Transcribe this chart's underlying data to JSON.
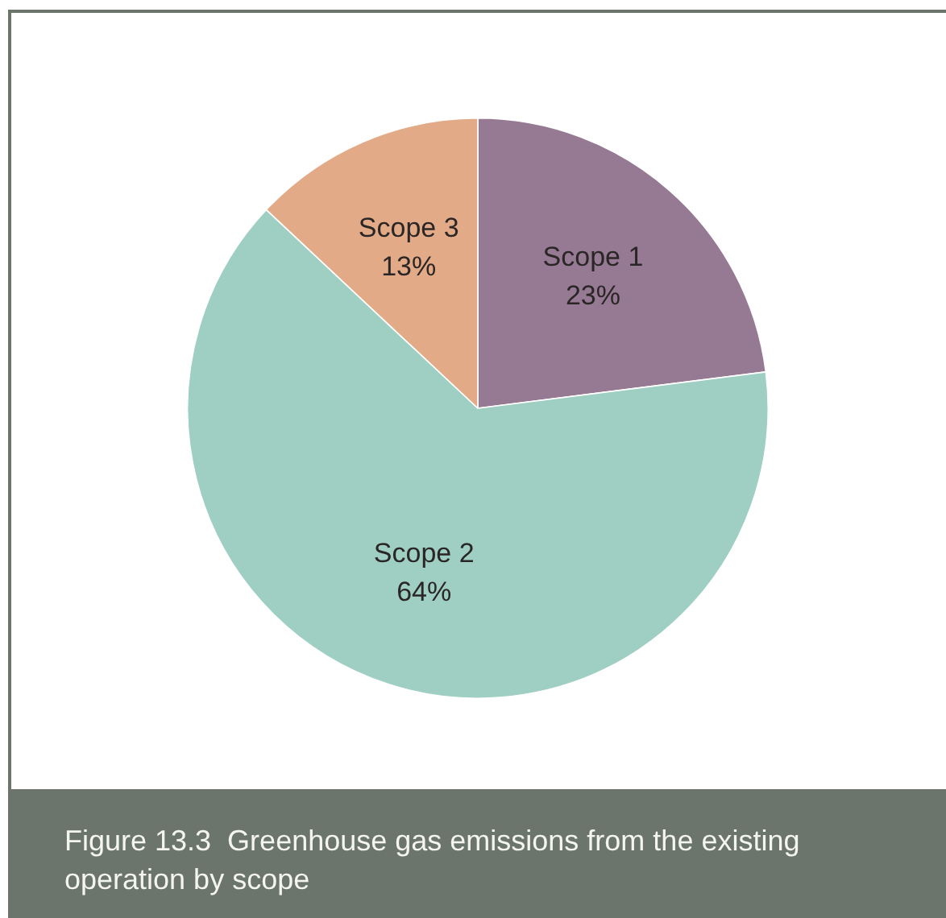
{
  "chart_data": {
    "type": "pie",
    "title": "Figure 13.3  Greenhouse gas emissions from the existing operation by scope",
    "categories": [
      "Scope 1",
      "Scope 2",
      "Scope 3"
    ],
    "values": [
      23,
      64,
      13
    ],
    "value_labels": [
      "23%",
      "64%",
      "13%"
    ],
    "colors": [
      "#967a93",
      "#9ecfc2",
      "#e3aa87"
    ],
    "legend": false
  }
}
